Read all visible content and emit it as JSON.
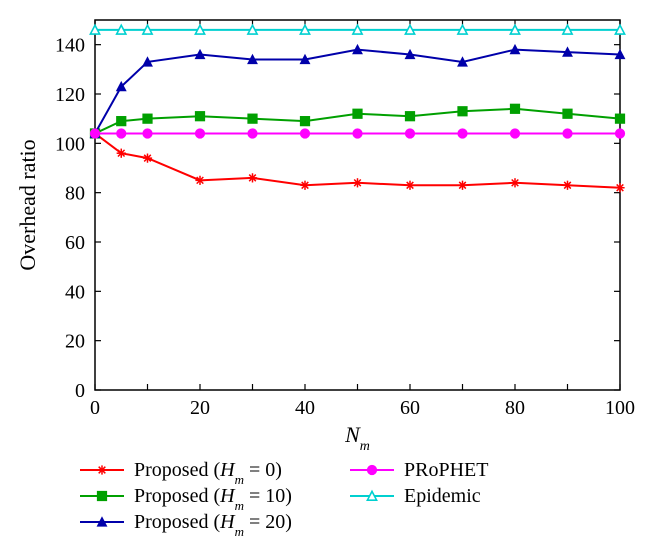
{
  "chart": {
    "type": "line",
    "background_color": "#ffffff",
    "plot_background_color": "#ffffff",
    "axis_color": "#000000",
    "grid_on": false,
    "line_width": 2,
    "marker_size": 6,
    "xlim": [
      0,
      100
    ],
    "ylim": [
      0,
      150
    ],
    "xtick_step": 10,
    "ytick_step": 20,
    "skip_x_labels": [
      10,
      30,
      50,
      70,
      90
    ],
    "tick_length": 6,
    "tick_fontsize": 20,
    "axis_title_fontsize": 22,
    "legend_fontsize": 20,
    "x_values": [
      0,
      5,
      10,
      20,
      30,
      40,
      50,
      60,
      70,
      80,
      90,
      100
    ],
    "xlabel_prefix": "N",
    "xlabel_sub": "m",
    "ylabel": "Overhead ratio",
    "series": [
      {
        "key": "h0",
        "label_prefix": "Proposed (",
        "label_var": "H",
        "label_sub": "m",
        "label_suffix": " = 0)",
        "color": "#ff0000",
        "marker": "asterisk",
        "yv": [
          104,
          96,
          94,
          85,
          86,
          83,
          84,
          83,
          83,
          84,
          83,
          82
        ]
      },
      {
        "key": "h10",
        "label_prefix": "Proposed (",
        "label_var": "H",
        "label_sub": "m",
        "label_suffix": " = 10)",
        "color": "#00a000",
        "marker": "square",
        "yv": [
          104,
          109,
          110,
          111,
          110,
          109,
          112,
          111,
          113,
          114,
          112,
          110
        ]
      },
      {
        "key": "h20",
        "label_prefix": "Proposed (",
        "label_var": "H",
        "label_sub": "m",
        "label_suffix": " = 20)",
        "color": "#0000aa",
        "marker": "triangle",
        "yv": [
          104,
          123,
          133,
          136,
          134,
          134,
          138,
          136,
          133,
          138,
          137,
          136
        ]
      },
      {
        "key": "prophet",
        "label_plain": "PRoPHET",
        "color": "#ff00ff",
        "marker": "circle",
        "yv": [
          104,
          104,
          104,
          104,
          104,
          104,
          104,
          104,
          104,
          104,
          104,
          104
        ]
      },
      {
        "key": "epidemic",
        "label_plain": "Epidemic",
        "color": "#00d0d0",
        "marker": "triangle-open",
        "yv": [
          146,
          146,
          146,
          146,
          146,
          146,
          146,
          146,
          146,
          146,
          146,
          146
        ]
      }
    ],
    "legend": {
      "columns": [
        [
          "h0",
          "h10",
          "h20"
        ],
        [
          "prophet",
          "epidemic"
        ]
      ]
    }
  }
}
